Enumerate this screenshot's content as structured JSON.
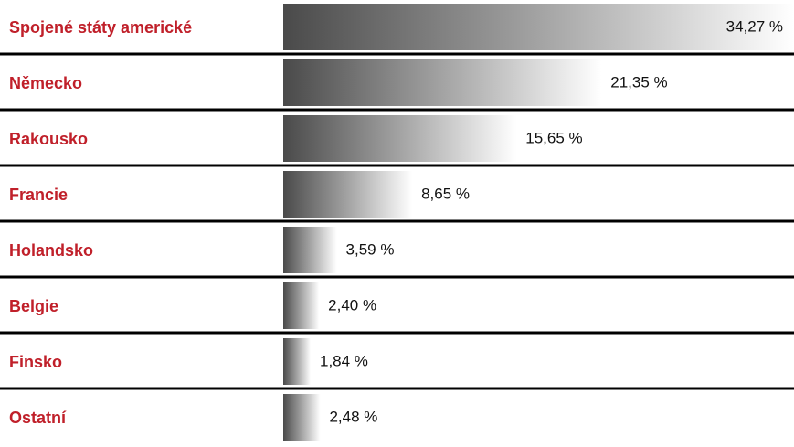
{
  "chart_data": {
    "type": "bar",
    "orientation": "horizontal",
    "categories": [
      "Spojené státy americké",
      "Německo",
      "Rakousko",
      "Francie",
      "Holandsko",
      "Belgie",
      "Finsko",
      "Ostatní"
    ],
    "values": [
      34.27,
      21.35,
      15.65,
      8.65,
      3.59,
      2.4,
      1.84,
      2.48
    ],
    "value_labels": [
      "34,27 %",
      "21,35 %",
      "15,65 %",
      "8,65 %",
      "3,59 %",
      "2,40 %",
      "1,84 %",
      "2,48 %"
    ]
  }
}
